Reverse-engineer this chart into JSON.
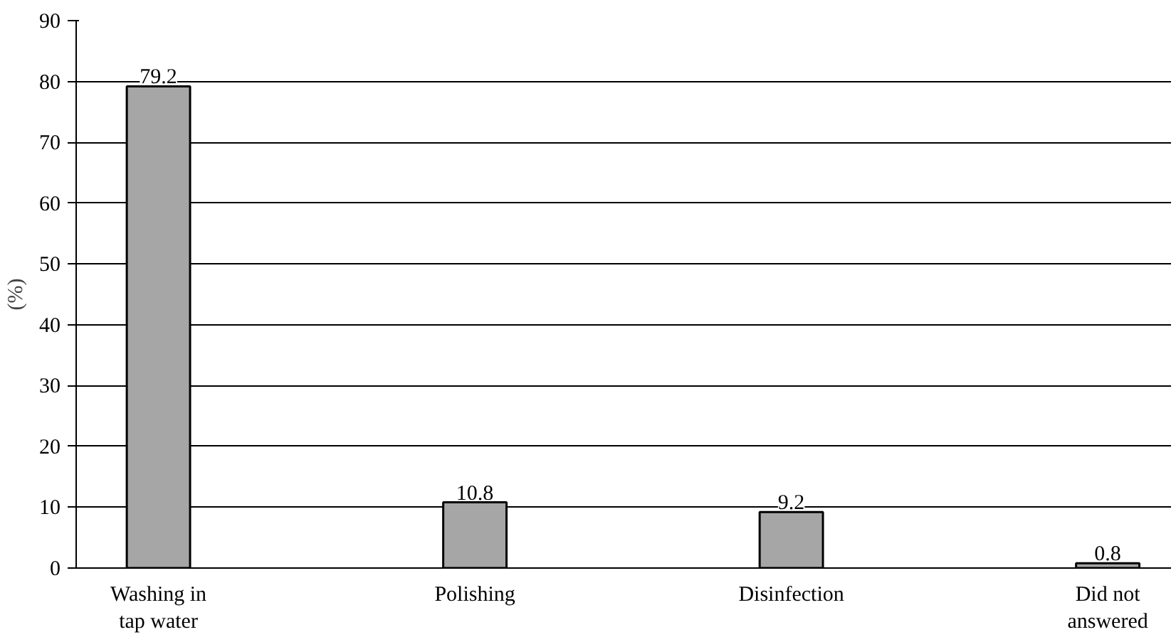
{
  "chart_data": {
    "type": "bar",
    "ylabel": "(%)",
    "categories": [
      "Washing in tap water",
      "Polishing",
      "Disinfection",
      "Did not answered"
    ],
    "values": [
      79.2,
      10.8,
      9.2,
      0.8
    ],
    "color": "#a6a6a6",
    "ylim": [
      0,
      90
    ],
    "yticks": [
      0,
      10,
      20,
      30,
      40,
      50,
      60,
      70,
      80,
      90
    ],
    "grid": "y",
    "data_labels": true
  }
}
